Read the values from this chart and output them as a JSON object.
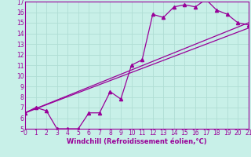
{
  "xlabel": "Windchill (Refroidissement éolien,°C)",
  "bg_color": "#c8f0e8",
  "grid_color": "#b0ddd4",
  "line_color": "#990099",
  "spine_color": "#990099",
  "xlim": [
    0,
    21
  ],
  "ylim": [
    5,
    17
  ],
  "xticks": [
    0,
    1,
    2,
    3,
    4,
    5,
    6,
    7,
    8,
    9,
    10,
    11,
    12,
    13,
    14,
    15,
    16,
    17,
    18,
    19,
    20,
    21
  ],
  "yticks": [
    5,
    6,
    7,
    8,
    9,
    10,
    11,
    12,
    13,
    14,
    15,
    16,
    17
  ],
  "line1_x": [
    0,
    1,
    2,
    3,
    4,
    5,
    6,
    7,
    8,
    9,
    10,
    11,
    12,
    13,
    14,
    15,
    16,
    17,
    18,
    19,
    20,
    21
  ],
  "line1_y": [
    6.5,
    7.0,
    6.7,
    5.0,
    5.0,
    5.0,
    6.5,
    6.5,
    8.5,
    7.8,
    11.0,
    11.5,
    15.8,
    15.5,
    16.5,
    16.7,
    16.5,
    17.2,
    16.2,
    15.8,
    15.0,
    14.8
  ],
  "line2_x": [
    0,
    21
  ],
  "line2_y": [
    6.5,
    15.0
  ],
  "line3_x": [
    0,
    21
  ],
  "line3_y": [
    6.5,
    14.5
  ],
  "tick_labelsize": 5.5,
  "xlabel_fontsize": 6.0,
  "linewidth": 0.9,
  "markersize": 3.0
}
